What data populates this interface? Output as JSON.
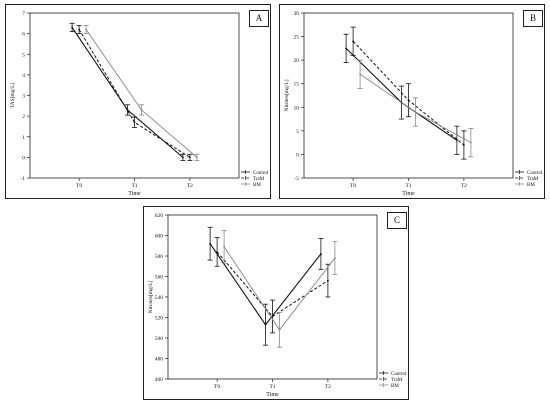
{
  "chart_data": [
    {
      "type": "line",
      "panel_label": "A",
      "xlabel": "Time",
      "ylabel": "TAS[mg/L]",
      "categories": [
        "T0",
        "T1",
        "T2"
      ],
      "ylim": [
        -1,
        7
      ],
      "yticks": [
        -1,
        0,
        1,
        2,
        3,
        4,
        5,
        6,
        7
      ],
      "series": [
        {
          "name": "Control",
          "values": [
            6.3,
            2.3,
            0.0
          ],
          "err": [
            0.2,
            0.25,
            0.15
          ]
        },
        {
          "name": "TraM",
          "values": [
            6.2,
            1.7,
            0.0
          ],
          "err": [
            0.2,
            0.25,
            0.15
          ]
        },
        {
          "name": "BM",
          "values": [
            6.2,
            2.3,
            0.0
          ],
          "err": [
            0.2,
            0.25,
            0.15
          ]
        }
      ]
    },
    {
      "type": "line",
      "panel_label": "B",
      "xlabel": "Time",
      "ylabel": "Nitrites[mg/L]",
      "categories": [
        "T0",
        "T1",
        "T2"
      ],
      "ylim": [
        -5,
        30
      ],
      "yticks": [
        -5,
        0,
        5,
        10,
        15,
        20,
        25,
        30
      ],
      "series": [
        {
          "name": "Control",
          "values": [
            22.5,
            11.0,
            3.0
          ],
          "err": [
            3.0,
            3.5,
            3.0
          ]
        },
        {
          "name": "TraM",
          "values": [
            24.0,
            11.5,
            2.0
          ],
          "err": [
            3.0,
            3.5,
            3.0
          ]
        },
        {
          "name": "BM",
          "values": [
            17.0,
            9.0,
            2.5
          ],
          "err": [
            3.0,
            3.0,
            3.0
          ]
        }
      ]
    },
    {
      "type": "line",
      "panel_label": "C",
      "xlabel": "Time",
      "ylabel": "Nitrates[mg/L]",
      "categories": [
        "T0",
        "T1",
        "T2"
      ],
      "ylim": [
        460,
        620
      ],
      "yticks": [
        460,
        480,
        500,
        520,
        540,
        560,
        580,
        600,
        620
      ],
      "series": [
        {
          "name": "Control",
          "values": [
            592,
            513,
            582
          ],
          "err": [
            16,
            20,
            15
          ]
        },
        {
          "name": "TraM",
          "values": [
            584,
            521,
            556
          ],
          "err": [
            14,
            16,
            16
          ]
        },
        {
          "name": "BM",
          "values": [
            589,
            508,
            578
          ],
          "err": [
            16,
            17,
            16
          ]
        }
      ]
    }
  ],
  "legend_labels": [
    "Control",
    "TraM",
    "BM"
  ]
}
